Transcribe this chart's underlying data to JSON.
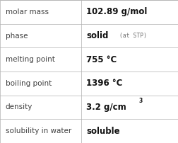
{
  "rows": [
    {
      "label": "molar mass",
      "main": "102.89 g/mol",
      "sup": null,
      "small": null
    },
    {
      "label": "phase",
      "main": "solid",
      "sup": null,
      "small": "(at STP)"
    },
    {
      "label": "melting point",
      "main": "755 °C",
      "sup": null,
      "small": null
    },
    {
      "label": "boiling point",
      "main": "1396 °C",
      "sup": null,
      "small": null
    },
    {
      "label": "density",
      "main": "3.2 g/cm",
      "sup": "3",
      "small": null
    },
    {
      "label": "solubility in water",
      "main": "soluble",
      "sup": null,
      "small": null
    }
  ],
  "col_split": 0.455,
  "bg_color": "#ffffff",
  "border_color": "#b0b0b0",
  "label_color": "#404040",
  "value_color": "#111111",
  "small_color": "#707070",
  "label_fontsize": 7.5,
  "value_fontsize": 8.5,
  "small_fontsize": 5.8,
  "sup_fontsize": 5.5
}
